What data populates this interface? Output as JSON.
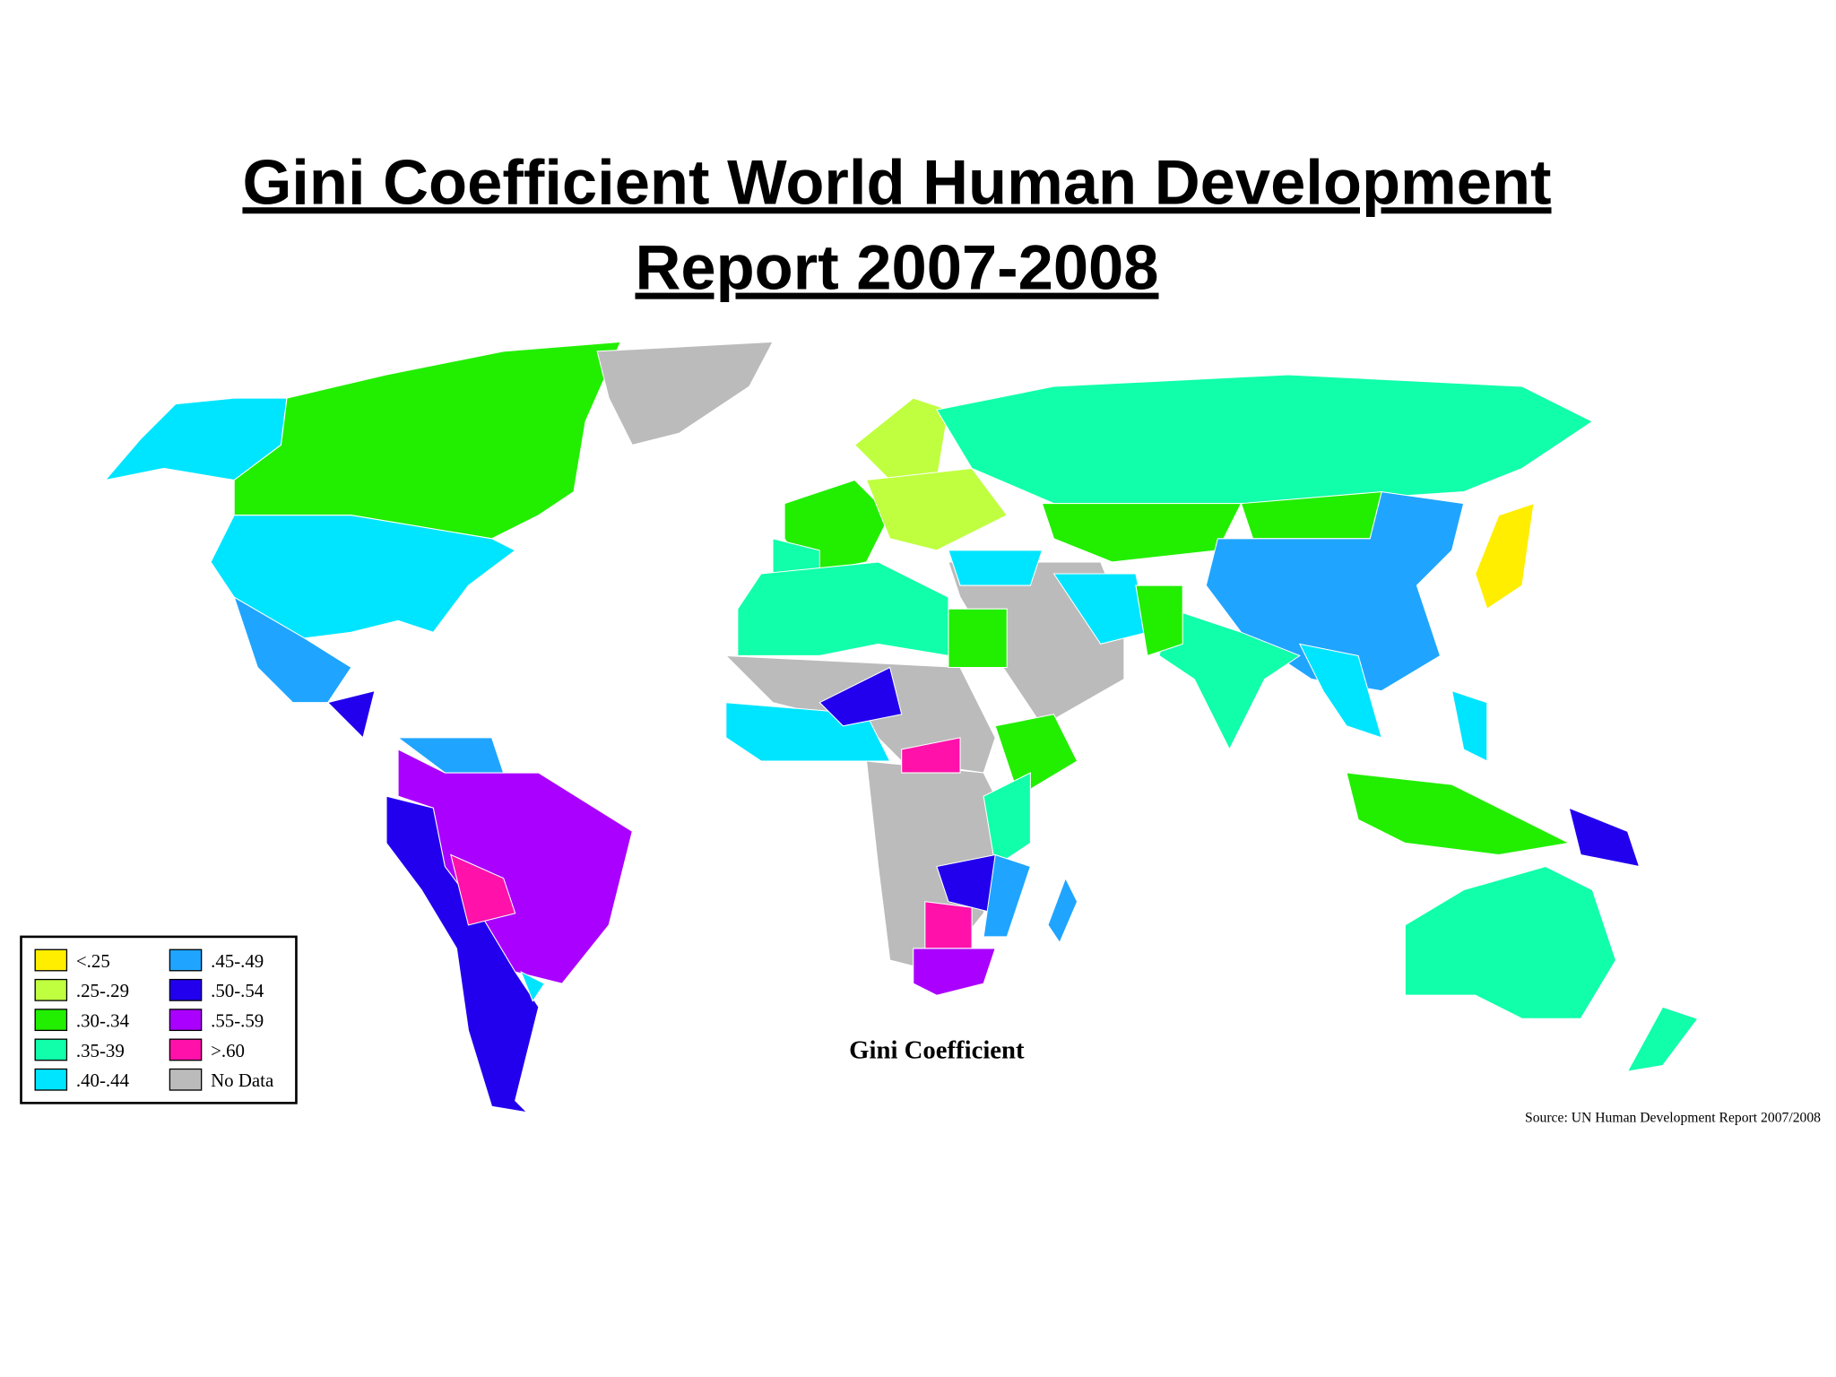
{
  "title_lines": [
    "Gini Coefficient World Human Development",
    "Report 2007-2008"
  ],
  "legend": [
    {
      "label": "<.25",
      "color": "#ffee00"
    },
    {
      "label": ".25-.29",
      "color": "#bfff3f"
    },
    {
      "label": ".30-.34",
      "color": "#22ee00"
    },
    {
      "label": ".35-39",
      "color": "#11ffaa"
    },
    {
      "label": ".40-.44",
      "color": "#00e5ff"
    },
    {
      "label": ".45-.49",
      "color": "#1fa5ff"
    },
    {
      "label": ".50-.54",
      "color": "#2200ee"
    },
    {
      "label": ".55-.59",
      "color": "#aa00ff"
    },
    {
      "label": ">.60",
      "color": "#ff11aa"
    },
    {
      "label": "No Data",
      "color": "#bbbbbb"
    }
  ],
  "map_caption": "Gini Coefficient",
  "source": "Source: UN Human Development Report 2007/2008"
}
